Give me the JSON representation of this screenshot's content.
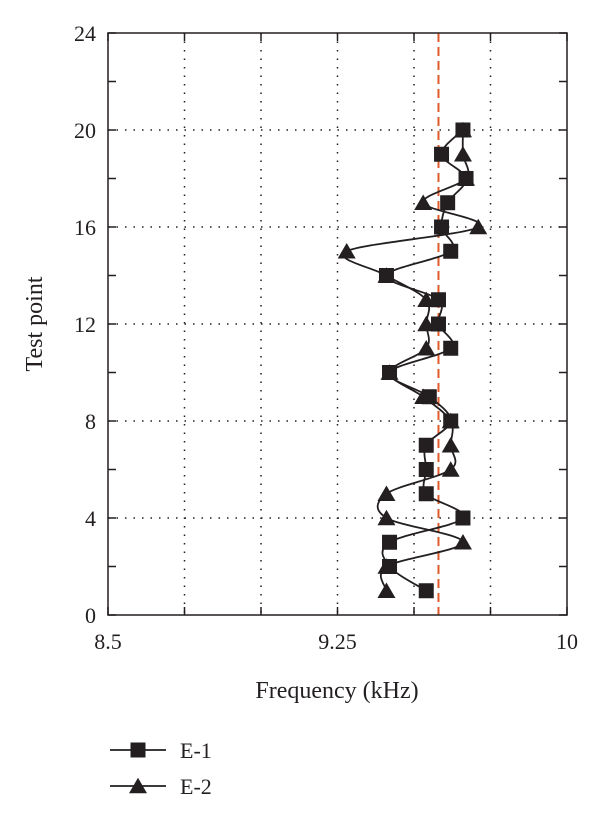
{
  "chart_data": {
    "type": "line",
    "title": "",
    "xlabel": "Frequency (kHz)",
    "ylabel": "Test point",
    "xlim": [
      8.5,
      10
    ],
    "ylim": [
      0,
      24
    ],
    "x_ticks": [
      8.5,
      8.75,
      9.0,
      9.25,
      9.5,
      9.75,
      10.0
    ],
    "x_tick_labels": [
      "8.5",
      "",
      "",
      "9.25",
      "",
      "",
      "10"
    ],
    "y_ticks": [
      0,
      2,
      4,
      6,
      8,
      10,
      12,
      14,
      16,
      18,
      20,
      22,
      24
    ],
    "y_tick_labels": [
      "0",
      "",
      "4",
      "",
      "8",
      "",
      "12",
      "",
      "16",
      "",
      "20",
      "",
      "24"
    ],
    "grid": true,
    "reference_line": {
      "x": 9.58,
      "color": "#e05a2b",
      "style": "dashed"
    },
    "legend_position": "bottom-left",
    "series": [
      {
        "name": "E-1",
        "marker": "square",
        "points": [
          {
            "test_point": 1,
            "frequency": 9.54
          },
          {
            "test_point": 2,
            "frequency": 9.42
          },
          {
            "test_point": 3,
            "frequency": 9.42
          },
          {
            "test_point": 4,
            "frequency": 9.66
          },
          {
            "test_point": 5,
            "frequency": 9.54
          },
          {
            "test_point": 6,
            "frequency": 9.54
          },
          {
            "test_point": 7,
            "frequency": 9.54
          },
          {
            "test_point": 8,
            "frequency": 9.62
          },
          {
            "test_point": 9,
            "frequency": 9.55
          },
          {
            "test_point": 10,
            "frequency": 9.42
          },
          {
            "test_point": 11,
            "frequency": 9.62
          },
          {
            "test_point": 12,
            "frequency": 9.58
          },
          {
            "test_point": 13,
            "frequency": 9.58
          },
          {
            "test_point": 14,
            "frequency": 9.41
          },
          {
            "test_point": 15,
            "frequency": 9.62
          },
          {
            "test_point": 16,
            "frequency": 9.59
          },
          {
            "test_point": 17,
            "frequency": 9.61
          },
          {
            "test_point": 18,
            "frequency": 9.67
          },
          {
            "test_point": 19,
            "frequency": 9.59
          },
          {
            "test_point": 20,
            "frequency": 9.66
          }
        ]
      },
      {
        "name": "E-2",
        "marker": "triangle",
        "points": [
          {
            "test_point": 1,
            "frequency": 9.41
          },
          {
            "test_point": 2,
            "frequency": 9.41
          },
          {
            "test_point": 3,
            "frequency": 9.66
          },
          {
            "test_point": 4,
            "frequency": 9.41
          },
          {
            "test_point": 5,
            "frequency": 9.41
          },
          {
            "test_point": 6,
            "frequency": 9.62
          },
          {
            "test_point": 7,
            "frequency": 9.62
          },
          {
            "test_point": 8,
            "frequency": 9.62
          },
          {
            "test_point": 9,
            "frequency": 9.53
          },
          {
            "test_point": 10,
            "frequency": 9.42
          },
          {
            "test_point": 11,
            "frequency": 9.54
          },
          {
            "test_point": 12,
            "frequency": 9.54
          },
          {
            "test_point": 13,
            "frequency": 9.54
          },
          {
            "test_point": 14,
            "frequency": 9.41
          },
          {
            "test_point": 15,
            "frequency": 9.28
          },
          {
            "test_point": 16,
            "frequency": 9.71
          },
          {
            "test_point": 17,
            "frequency": 9.53
          },
          {
            "test_point": 18,
            "frequency": 9.67
          },
          {
            "test_point": 19,
            "frequency": 9.66
          },
          {
            "test_point": 20,
            "frequency": 9.66
          }
        ]
      }
    ]
  }
}
